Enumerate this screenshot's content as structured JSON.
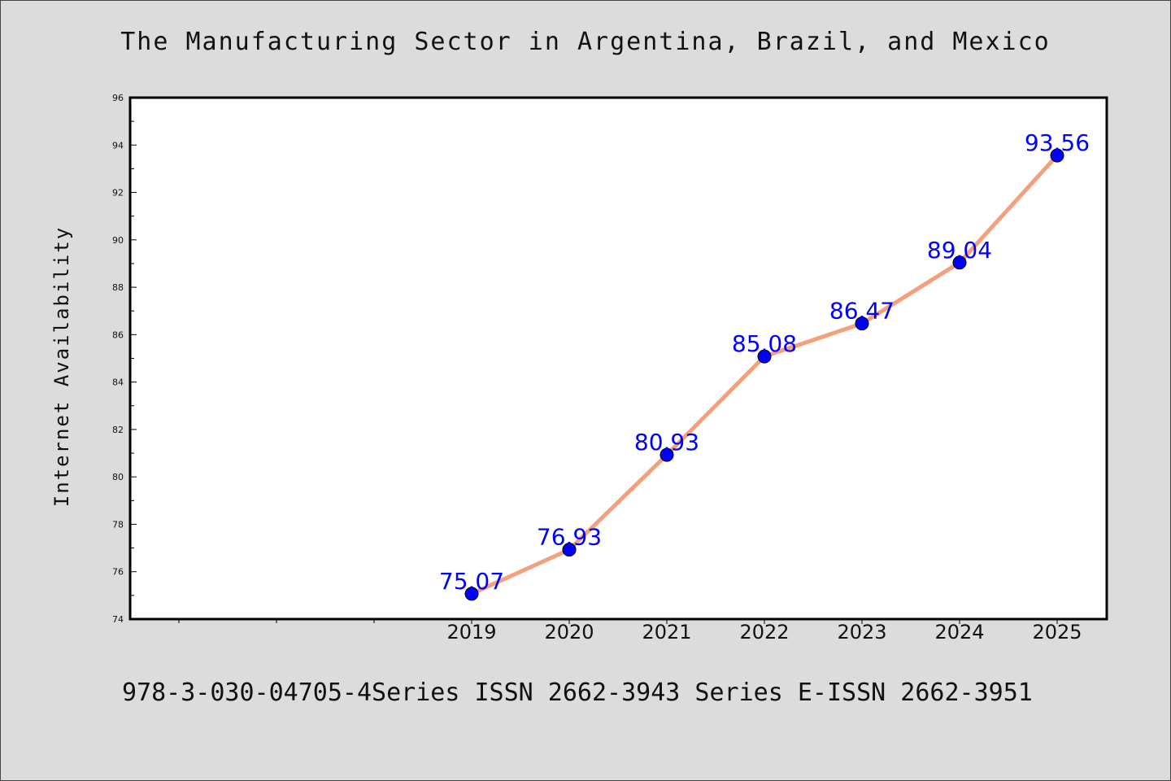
{
  "colors": {
    "background": "#dcdcdc",
    "line": "#f4a07f",
    "marker": "#0000ff",
    "data_label": "#0000ff",
    "plot_bg": "#ffffff"
  },
  "footer_text": "978-3-030-04705-4Series ISSN 2662-3943 Series E-ISSN 2662-3951",
  "chart_data": {
    "type": "line",
    "title": "The Manufacturing Sector in Argentina, Brazil, and Mexico",
    "xlabel": "",
    "ylabel": "Internet Availability",
    "x": [
      "2019",
      "2020",
      "2021",
      "2022",
      "2023",
      "2024",
      "2025"
    ],
    "series": [
      {
        "values": [
          75.07,
          76.93,
          80.93,
          85.08,
          86.47,
          89.04,
          93.56
        ],
        "labels": [
          "75.07",
          "76.93",
          "80.93",
          "85.08",
          "86.47",
          "89.04",
          "93.56"
        ]
      }
    ],
    "ylim": [
      74,
      96
    ],
    "yticks": [
      "74",
      "76",
      "78",
      "80",
      "82",
      "84",
      "86",
      "88",
      "90",
      "92",
      "94",
      "96"
    ],
    "grid": false,
    "legend": "none"
  }
}
